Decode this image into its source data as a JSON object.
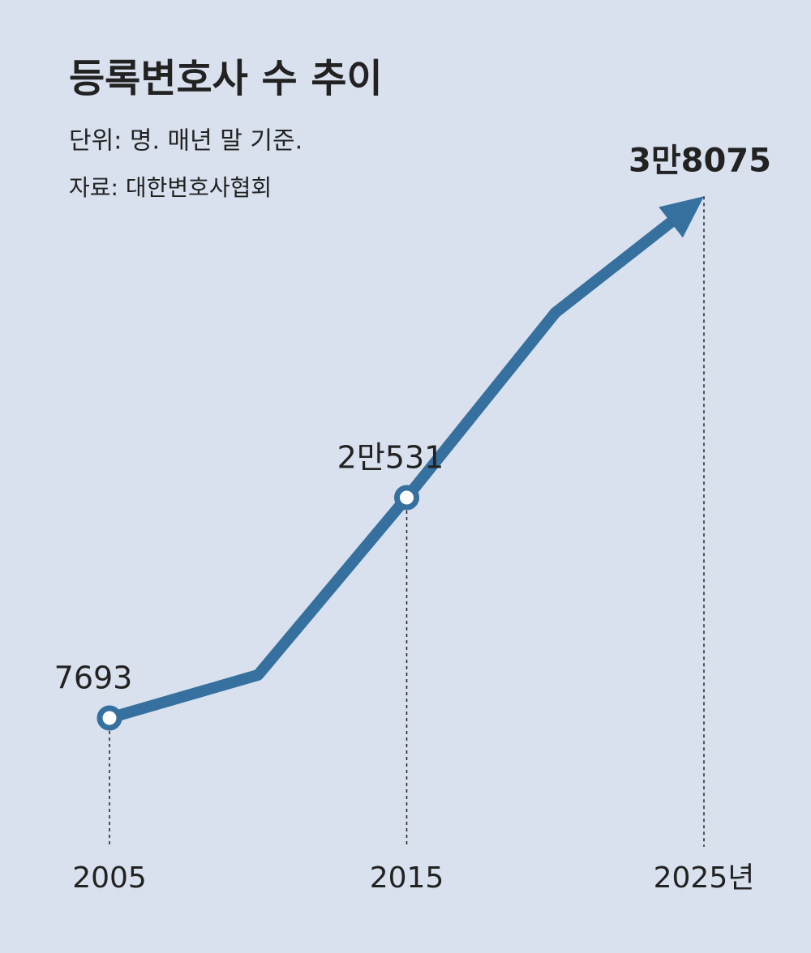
{
  "chart_data": {
    "type": "line",
    "title": "등록변호사 수 추이",
    "subtitle": "단위: 명. 매년 말 기준.",
    "source": "자료: 대한변호사협회",
    "x": [
      2005,
      2010,
      2015,
      2020,
      2025
    ],
    "values": [
      7693,
      10200,
      20531,
      31300,
      38075
    ],
    "value_labels": [
      "7693",
      null,
      "2만531",
      null,
      "3만8075"
    ],
    "color": "#36709f",
    "xlim": [
      2005,
      2025
    ],
    "xticks": [
      2005,
      2015,
      {
        "value": 2025,
        "label": "2025년"
      }
    ],
    "ylim": [
      0,
      40000
    ]
  }
}
